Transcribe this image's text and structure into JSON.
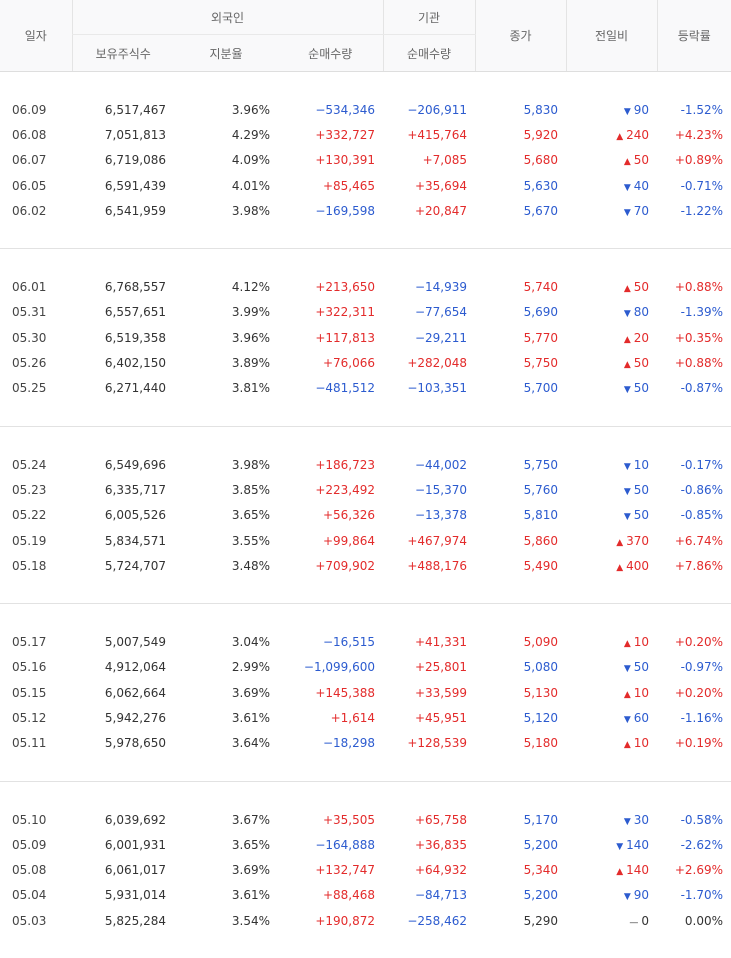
{
  "header": {
    "date": "일자",
    "foreign": "외국인",
    "institution": "기관",
    "holdings": "보유주식수",
    "ratio": "지분율",
    "foreign_net": "순매수량",
    "inst_net": "순매수량",
    "close": "종가",
    "change": "전일비",
    "rate": "등락률"
  },
  "colors": {
    "up": "#e32b2b",
    "down": "#2c5bcf",
    "flat": "#333333"
  },
  "groups": [
    [
      {
        "date": "06.09",
        "holdings": "6,517,467",
        "ratio": "3.96%",
        "foreign_net": "−534,346",
        "inst_net": "−206,911",
        "close": "5,830",
        "change": "90",
        "rate": "-1.52%",
        "dir": "down"
      },
      {
        "date": "06.08",
        "holdings": "7,051,813",
        "ratio": "4.29%",
        "foreign_net": "+332,727",
        "inst_net": "+415,764",
        "close": "5,920",
        "change": "240",
        "rate": "+4.23%",
        "dir": "up"
      },
      {
        "date": "06.07",
        "holdings": "6,719,086",
        "ratio": "4.09%",
        "foreign_net": "+130,391",
        "inst_net": "+7,085",
        "close": "5,680",
        "change": "50",
        "rate": "+0.89%",
        "dir": "up"
      },
      {
        "date": "06.05",
        "holdings": "6,591,439",
        "ratio": "4.01%",
        "foreign_net": "+85,465",
        "inst_net": "+35,694",
        "close": "5,630",
        "change": "40",
        "rate": "-0.71%",
        "dir": "down"
      },
      {
        "date": "06.02",
        "holdings": "6,541,959",
        "ratio": "3.98%",
        "foreign_net": "−169,598",
        "inst_net": "+20,847",
        "close": "5,670",
        "change": "70",
        "rate": "-1.22%",
        "dir": "down"
      }
    ],
    [
      {
        "date": "06.01",
        "holdings": "6,768,557",
        "ratio": "4.12%",
        "foreign_net": "+213,650",
        "inst_net": "−14,939",
        "close": "5,740",
        "change": "50",
        "rate": "+0.88%",
        "dir": "up"
      },
      {
        "date": "05.31",
        "holdings": "6,557,651",
        "ratio": "3.99%",
        "foreign_net": "+322,311",
        "inst_net": "−77,654",
        "close": "5,690",
        "change": "80",
        "rate": "-1.39%",
        "dir": "down"
      },
      {
        "date": "05.30",
        "holdings": "6,519,358",
        "ratio": "3.96%",
        "foreign_net": "+117,813",
        "inst_net": "−29,211",
        "close": "5,770",
        "change": "20",
        "rate": "+0.35%",
        "dir": "up"
      },
      {
        "date": "05.26",
        "holdings": "6,402,150",
        "ratio": "3.89%",
        "foreign_net": "+76,066",
        "inst_net": "+282,048",
        "close": "5,750",
        "change": "50",
        "rate": "+0.88%",
        "dir": "up"
      },
      {
        "date": "05.25",
        "holdings": "6,271,440",
        "ratio": "3.81%",
        "foreign_net": "−481,512",
        "inst_net": "−103,351",
        "close": "5,700",
        "change": "50",
        "rate": "-0.87%",
        "dir": "down"
      }
    ],
    [
      {
        "date": "05.24",
        "holdings": "6,549,696",
        "ratio": "3.98%",
        "foreign_net": "+186,723",
        "inst_net": "−44,002",
        "close": "5,750",
        "change": "10",
        "rate": "-0.17%",
        "dir": "down"
      },
      {
        "date": "05.23",
        "holdings": "6,335,717",
        "ratio": "3.85%",
        "foreign_net": "+223,492",
        "inst_net": "−15,370",
        "close": "5,760",
        "change": "50",
        "rate": "-0.86%",
        "dir": "down"
      },
      {
        "date": "05.22",
        "holdings": "6,005,526",
        "ratio": "3.65%",
        "foreign_net": "+56,326",
        "inst_net": "−13,378",
        "close": "5,810",
        "change": "50",
        "rate": "-0.85%",
        "dir": "down"
      },
      {
        "date": "05.19",
        "holdings": "5,834,571",
        "ratio": "3.55%",
        "foreign_net": "+99,864",
        "inst_net": "+467,974",
        "close": "5,860",
        "change": "370",
        "rate": "+6.74%",
        "dir": "up"
      },
      {
        "date": "05.18",
        "holdings": "5,724,707",
        "ratio": "3.48%",
        "foreign_net": "+709,902",
        "inst_net": "+488,176",
        "close": "5,490",
        "change": "400",
        "rate": "+7.86%",
        "dir": "up"
      }
    ],
    [
      {
        "date": "05.17",
        "holdings": "5,007,549",
        "ratio": "3.04%",
        "foreign_net": "−16,515",
        "inst_net": "+41,331",
        "close": "5,090",
        "change": "10",
        "rate": "+0.20%",
        "dir": "up"
      },
      {
        "date": "05.16",
        "holdings": "4,912,064",
        "ratio": "2.99%",
        "foreign_net": "−1,099,600",
        "inst_net": "+25,801",
        "close": "5,080",
        "change": "50",
        "rate": "-0.97%",
        "dir": "down"
      },
      {
        "date": "05.15",
        "holdings": "6,062,664",
        "ratio": "3.69%",
        "foreign_net": "+145,388",
        "inst_net": "+33,599",
        "close": "5,130",
        "change": "10",
        "rate": "+0.20%",
        "dir": "up"
      },
      {
        "date": "05.12",
        "holdings": "5,942,276",
        "ratio": "3.61%",
        "foreign_net": "+1,614",
        "inst_net": "+45,951",
        "close": "5,120",
        "change": "60",
        "rate": "-1.16%",
        "dir": "down"
      },
      {
        "date": "05.11",
        "holdings": "5,978,650",
        "ratio": "3.64%",
        "foreign_net": "−18,298",
        "inst_net": "+128,539",
        "close": "5,180",
        "change": "10",
        "rate": "+0.19%",
        "dir": "up"
      }
    ],
    [
      {
        "date": "05.10",
        "holdings": "6,039,692",
        "ratio": "3.67%",
        "foreign_net": "+35,505",
        "inst_net": "+65,758",
        "close": "5,170",
        "change": "30",
        "rate": "-0.58%",
        "dir": "down"
      },
      {
        "date": "05.09",
        "holdings": "6,001,931",
        "ratio": "3.65%",
        "foreign_net": "−164,888",
        "inst_net": "+36,835",
        "close": "5,200",
        "change": "140",
        "rate": "-2.62%",
        "dir": "down"
      },
      {
        "date": "05.08",
        "holdings": "6,061,017",
        "ratio": "3.69%",
        "foreign_net": "+132,747",
        "inst_net": "+64,932",
        "close": "5,340",
        "change": "140",
        "rate": "+2.69%",
        "dir": "up"
      },
      {
        "date": "05.04",
        "holdings": "5,931,014",
        "ratio": "3.61%",
        "foreign_net": "+88,468",
        "inst_net": "−84,713",
        "close": "5,200",
        "change": "90",
        "rate": "-1.70%",
        "dir": "down"
      },
      {
        "date": "05.03",
        "holdings": "5,825,284",
        "ratio": "3.54%",
        "foreign_net": "+190,872",
        "inst_net": "−258,462",
        "close": "5,290",
        "change": "0",
        "rate": "0.00%",
        "dir": "flat"
      }
    ]
  ]
}
